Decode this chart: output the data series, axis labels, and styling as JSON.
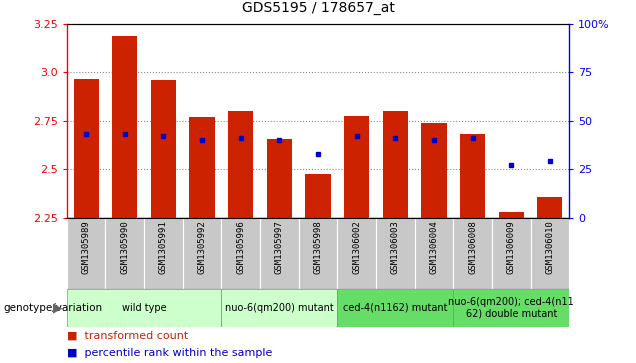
{
  "title": "GDS5195 / 178657_at",
  "samples": [
    "GSM1305989",
    "GSM1305990",
    "GSM1305991",
    "GSM1305992",
    "GSM1305996",
    "GSM1305997",
    "GSM1305998",
    "GSM1306002",
    "GSM1306003",
    "GSM1306004",
    "GSM1306008",
    "GSM1306009",
    "GSM1306010"
  ],
  "red_values": [
    2.965,
    3.185,
    2.96,
    2.77,
    2.8,
    2.655,
    2.475,
    2.775,
    2.8,
    2.74,
    2.68,
    2.28,
    2.355
  ],
  "blue_pcts": [
    43,
    43,
    42,
    40,
    41,
    40,
    33,
    42,
    41,
    40,
    41,
    27,
    29
  ],
  "ylim_left": [
    2.25,
    3.25
  ],
  "ylim_right": [
    0,
    100
  ],
  "yticks_left": [
    2.25,
    2.5,
    2.75,
    3.0,
    3.25
  ],
  "yticks_right": [
    0,
    25,
    50,
    75,
    100
  ],
  "ytick_labels_right": [
    "0",
    "25",
    "50",
    "75",
    "100%"
  ],
  "bar_bottom": 2.25,
  "bar_color": "#cc2200",
  "dot_color": "#0000cc",
  "group_labels": [
    "wild type",
    "nuo-6(qm200) mutant",
    "ced-4(n1162) mutant",
    "nuo-6(qm200); ced-4(n11\n62) double mutant"
  ],
  "group_starts": [
    0,
    4,
    7,
    10
  ],
  "group_ends": [
    3,
    6,
    9,
    12
  ],
  "group_colors": [
    "#ccffcc",
    "#ccffcc",
    "#66dd66",
    "#66dd66"
  ],
  "sample_bg": "#c8c8c8",
  "title_fontsize": 10,
  "legend_fontsize": 8,
  "x_label_fontsize": 6.5,
  "bar_width": 0.65
}
